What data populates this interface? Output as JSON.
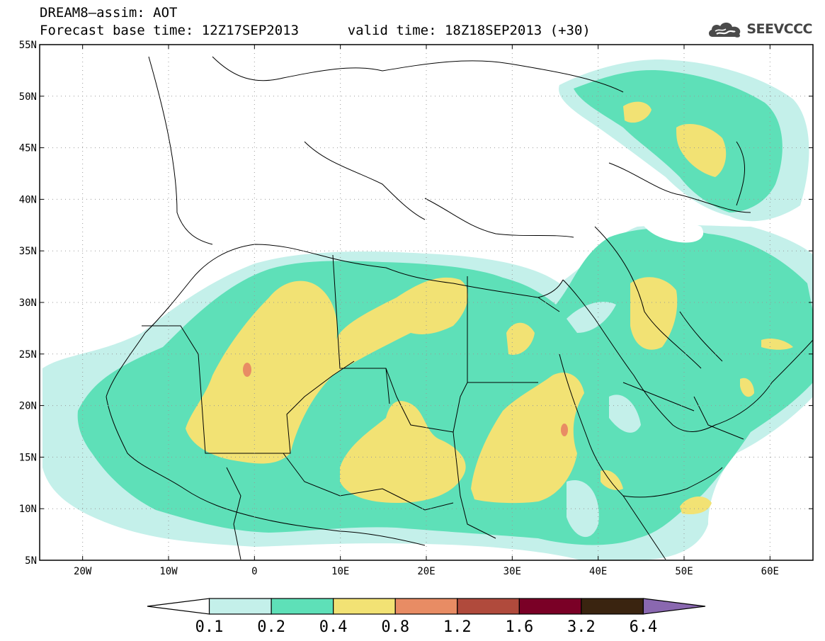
{
  "title": {
    "line1": "DREAM8–assim: AOT",
    "line2_base": "Forecast base time: 12Z17SEP2013",
    "line2_valid": "valid time: 18Z18SEP2013 (+30)"
  },
  "logo": {
    "text": "SEEVCCC",
    "icon": "cloud-icon"
  },
  "map": {
    "lon_range": [
      -25,
      65
    ],
    "lat_range": [
      5,
      55
    ],
    "lon_ticks": [
      {
        "v": -20,
        "label": "20W"
      },
      {
        "v": -10,
        "label": "10W"
      },
      {
        "v": 0,
        "label": "0"
      },
      {
        "v": 10,
        "label": "10E"
      },
      {
        "v": 20,
        "label": "20E"
      },
      {
        "v": 30,
        "label": "30E"
      },
      {
        "v": 40,
        "label": "40E"
      },
      {
        "v": 50,
        "label": "50E"
      },
      {
        "v": 60,
        "label": "60E"
      }
    ],
    "lat_ticks": [
      {
        "v": 5,
        "label": "5N"
      },
      {
        "v": 10,
        "label": "10N"
      },
      {
        "v": 15,
        "label": "15N"
      },
      {
        "v": 20,
        "label": "20N"
      },
      {
        "v": 25,
        "label": "25N"
      },
      {
        "v": 30,
        "label": "30N"
      },
      {
        "v": 35,
        "label": "35N"
      },
      {
        "v": 40,
        "label": "40N"
      },
      {
        "v": 45,
        "label": "45N"
      },
      {
        "v": 50,
        "label": "50N"
      },
      {
        "v": 55,
        "label": "55N"
      }
    ],
    "grid": "dotted"
  },
  "colorbar": {
    "levels": [
      "0.1",
      "0.2",
      "0.4",
      "0.8",
      "1.2",
      "1.6",
      "3.2",
      "6.4"
    ],
    "colors": [
      "#ffffff",
      "#c4f0ea",
      "#5ee0b8",
      "#f2e274",
      "#e88c64",
      "#b04a3c",
      "#7a0026",
      "#3a2410",
      "#8a68b0"
    ]
  }
}
